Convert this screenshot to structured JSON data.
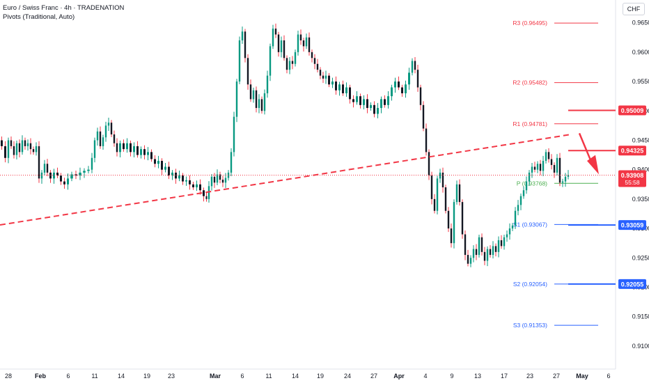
{
  "header": {
    "title": "Euro / Swiss Franc · 4h · TRADENATION",
    "indicator": "Pivots (Traditional, Auto)",
    "currency": "CHF"
  },
  "chart_data": {
    "type": "candlestick",
    "title": "Euro / Swiss Franc · 4h · TRADENATION",
    "ylim": [
      0.9075,
      0.9665
    ],
    "y_ticks": [
      "0.96500",
      "0.96000",
      "0.95500",
      "0.95000",
      "0.94500",
      "0.94000",
      "0.93500",
      "0.93000",
      "0.92500",
      "0.92000",
      "0.91500",
      "0.91000"
    ],
    "x_ticks": [
      "28",
      "Feb",
      "6",
      "11",
      "14",
      "19",
      "23",
      "Mar",
      "6",
      "11",
      "14",
      "19",
      "24",
      "27",
      "Apr",
      "4",
      "9",
      "13",
      "17",
      "23",
      "27",
      "May",
      "6"
    ],
    "price_path": [
      [
        0,
        0.945
      ],
      [
        5,
        0.944
      ],
      [
        10,
        0.942
      ],
      [
        14,
        0.945
      ],
      [
        18,
        0.944
      ],
      [
        22,
        0.9425
      ],
      [
        26,
        0.9445
      ],
      [
        30,
        0.943
      ],
      [
        34,
        0.945
      ],
      [
        38,
        0.944
      ],
      [
        42,
        0.9445
      ],
      [
        46,
        0.9435
      ],
      [
        50,
        0.943
      ],
      [
        54,
        0.944
      ],
      [
        58,
        0.9385
      ],
      [
        62,
        0.9395
      ],
      [
        66,
        0.941
      ],
      [
        70,
        0.9395
      ],
      [
        75,
        0.9385
      ],
      [
        80,
        0.9395
      ],
      [
        85,
        0.939
      ],
      [
        90,
        0.938
      ],
      [
        95,
        0.9375
      ],
      [
        100,
        0.9385
      ],
      [
        106,
        0.9392
      ],
      [
        112,
        0.939
      ],
      [
        118,
        0.9395
      ],
      [
        124,
        0.9398
      ],
      [
        130,
        0.94
      ],
      [
        134,
        0.942
      ],
      [
        138,
        0.945
      ],
      [
        142,
        0.9465
      ],
      [
        146,
        0.944
      ],
      [
        150,
        0.9455
      ],
      [
        154,
        0.9475
      ],
      [
        158,
        0.948
      ],
      [
        162,
        0.946
      ],
      [
        166,
        0.9445
      ],
      [
        170,
        0.943
      ],
      [
        175,
        0.9445
      ],
      [
        180,
        0.9435
      ],
      [
        185,
        0.9445
      ],
      [
        190,
        0.943
      ],
      [
        195,
        0.944
      ],
      [
        200,
        0.9425
      ],
      [
        205,
        0.9435
      ],
      [
        210,
        0.9425
      ],
      [
        215,
        0.943
      ],
      [
        220,
        0.9418
      ],
      [
        225,
        0.941
      ],
      [
        230,
        0.9415
      ],
      [
        235,
        0.94
      ],
      [
        240,
        0.9405
      ],
      [
        245,
        0.939
      ],
      [
        250,
        0.9395
      ],
      [
        255,
        0.9385
      ],
      [
        260,
        0.939
      ],
      [
        265,
        0.938
      ],
      [
        270,
        0.9382
      ],
      [
        275,
        0.9375
      ],
      [
        280,
        0.937
      ],
      [
        285,
        0.9375
      ],
      [
        290,
        0.9365
      ],
      [
        295,
        0.9355
      ],
      [
        298,
        0.935
      ],
      [
        302,
        0.9372
      ],
      [
        306,
        0.9388
      ],
      [
        310,
        0.9378
      ],
      [
        314,
        0.9392
      ],
      [
        318,
        0.9383
      ],
      [
        322,
        0.9378
      ],
      [
        326,
        0.9386
      ],
      [
        330,
        0.9395
      ],
      [
        334,
        0.943
      ],
      [
        338,
        0.949
      ],
      [
        342,
        0.955
      ],
      [
        346,
        0.962
      ],
      [
        350,
        0.9635
      ],
      [
        354,
        0.959
      ],
      [
        358,
        0.9545
      ],
      [
        362,
        0.952
      ],
      [
        366,
        0.9535
      ],
      [
        370,
        0.9505
      ],
      [
        374,
        0.952
      ],
      [
        378,
        0.95
      ],
      [
        382,
        0.953
      ],
      [
        386,
        0.956
      ],
      [
        390,
        0.961
      ],
      [
        394,
        0.964
      ],
      [
        398,
        0.963
      ],
      [
        402,
        0.96
      ],
      [
        406,
        0.962
      ],
      [
        410,
        0.959
      ],
      [
        414,
        0.957
      ],
      [
        418,
        0.9585
      ],
      [
        422,
        0.958
      ],
      [
        426,
        0.96
      ],
      [
        430,
        0.963
      ],
      [
        434,
        0.962
      ],
      [
        438,
        0.961
      ],
      [
        442,
        0.9625
      ],
      [
        446,
        0.96
      ],
      [
        450,
        0.959
      ],
      [
        454,
        0.958
      ],
      [
        458,
        0.957
      ],
      [
        462,
        0.956
      ],
      [
        466,
        0.9555
      ],
      [
        470,
        0.956
      ],
      [
        475,
        0.9545
      ],
      [
        480,
        0.955
      ],
      [
        485,
        0.9535
      ],
      [
        490,
        0.9545
      ],
      [
        495,
        0.953
      ],
      [
        500,
        0.954
      ],
      [
        505,
        0.952
      ],
      [
        510,
        0.9515
      ],
      [
        515,
        0.9525
      ],
      [
        520,
        0.951
      ],
      [
        525,
        0.952
      ],
      [
        530,
        0.9505
      ],
      [
        535,
        0.951
      ],
      [
        540,
        0.9495
      ],
      [
        545,
        0.9505
      ],
      [
        550,
        0.952
      ],
      [
        555,
        0.951
      ],
      [
        560,
        0.9525
      ],
      [
        565,
        0.954
      ],
      [
        570,
        0.955
      ],
      [
        575,
        0.954
      ],
      [
        580,
        0.953
      ],
      [
        585,
        0.9545
      ],
      [
        590,
        0.9565
      ],
      [
        594,
        0.9585
      ],
      [
        598,
        0.957
      ],
      [
        602,
        0.954
      ],
      [
        606,
        0.951
      ],
      [
        610,
        0.947
      ],
      [
        614,
        0.943
      ],
      [
        618,
        0.939
      ],
      [
        622,
        0.935
      ],
      [
        626,
        0.933
      ],
      [
        630,
        0.9385
      ],
      [
        634,
        0.9395
      ],
      [
        638,
        0.937
      ],
      [
        642,
        0.933
      ],
      [
        646,
        0.93
      ],
      [
        650,
        0.9275
      ],
      [
        654,
        0.9345
      ],
      [
        658,
        0.9375
      ],
      [
        662,
        0.9345
      ],
      [
        666,
        0.929
      ],
      [
        670,
        0.9255
      ],
      [
        674,
        0.924
      ],
      [
        678,
        0.925
      ],
      [
        682,
        0.9265
      ],
      [
        686,
        0.9255
      ],
      [
        690,
        0.9285
      ],
      [
        694,
        0.926
      ],
      [
        698,
        0.9245
      ],
      [
        702,
        0.9265
      ],
      [
        706,
        0.9255
      ],
      [
        710,
        0.927
      ],
      [
        714,
        0.926
      ],
      [
        718,
        0.928
      ],
      [
        722,
        0.927
      ],
      [
        726,
        0.9285
      ],
      [
        730,
        0.929
      ],
      [
        734,
        0.93
      ],
      [
        738,
        0.9305
      ],
      [
        742,
        0.933
      ],
      [
        746,
        0.934
      ],
      [
        750,
        0.9355
      ],
      [
        754,
        0.9365
      ],
      [
        758,
        0.938
      ],
      [
        762,
        0.9395
      ],
      [
        766,
        0.9405
      ],
      [
        770,
        0.94
      ],
      [
        774,
        0.941
      ],
      [
        778,
        0.9398
      ],
      [
        782,
        0.9415
      ],
      [
        786,
        0.943
      ],
      [
        790,
        0.9418
      ],
      [
        794,
        0.9408
      ],
      [
        798,
        0.9395
      ],
      [
        802,
        0.942
      ],
      [
        806,
        0.9378
      ],
      [
        810,
        0.938
      ],
      [
        814,
        0.9388
      ],
      [
        818,
        0.9391
      ]
    ],
    "pivots": [
      {
        "name": "R3",
        "value": 0.96495,
        "label": "R3 (0.96495)",
        "color": "#f23645"
      },
      {
        "name": "R2",
        "value": 0.95482,
        "label": "R2 (0.95482)",
        "color": "#f23645"
      },
      {
        "name": "R1",
        "value": 0.94781,
        "label": "R1 (0.94781)",
        "color": "#f23645"
      },
      {
        "name": "P",
        "value": 0.93768,
        "label": "P (0.93768)",
        "color": "#4caf50"
      },
      {
        "name": "S1",
        "value": 0.93067,
        "label": "S1 (0.93067)",
        "color": "#2962ff"
      },
      {
        "name": "S2",
        "value": 0.92054,
        "label": "S2 (0.92054)",
        "color": "#2962ff"
      },
      {
        "name": "S3",
        "value": 0.91353,
        "label": "S3 (0.91353)",
        "color": "#2962ff"
      }
    ],
    "levels": [
      {
        "value": 0.95009,
        "label": "0.95009",
        "color": "#f23645"
      },
      {
        "value": 0.94325,
        "label": "0.94325",
        "color": "#f23645"
      },
      {
        "value": 0.93059,
        "label": "0.93059",
        "color": "#2962ff"
      },
      {
        "value": 0.92055,
        "label": "0.92055",
        "color": "#2962ff"
      }
    ],
    "current_price": {
      "value": 0.93908,
      "label": "0.93908",
      "countdown": "55:58",
      "color": "#f23645"
    },
    "trendline": {
      "from": [
        0,
        0.9306
      ],
      "to": [
        820,
        0.946
      ],
      "color": "#f23645"
    },
    "colors": {
      "up": "#089981",
      "down": "#f23645",
      "candle_body": "#131722"
    }
  }
}
